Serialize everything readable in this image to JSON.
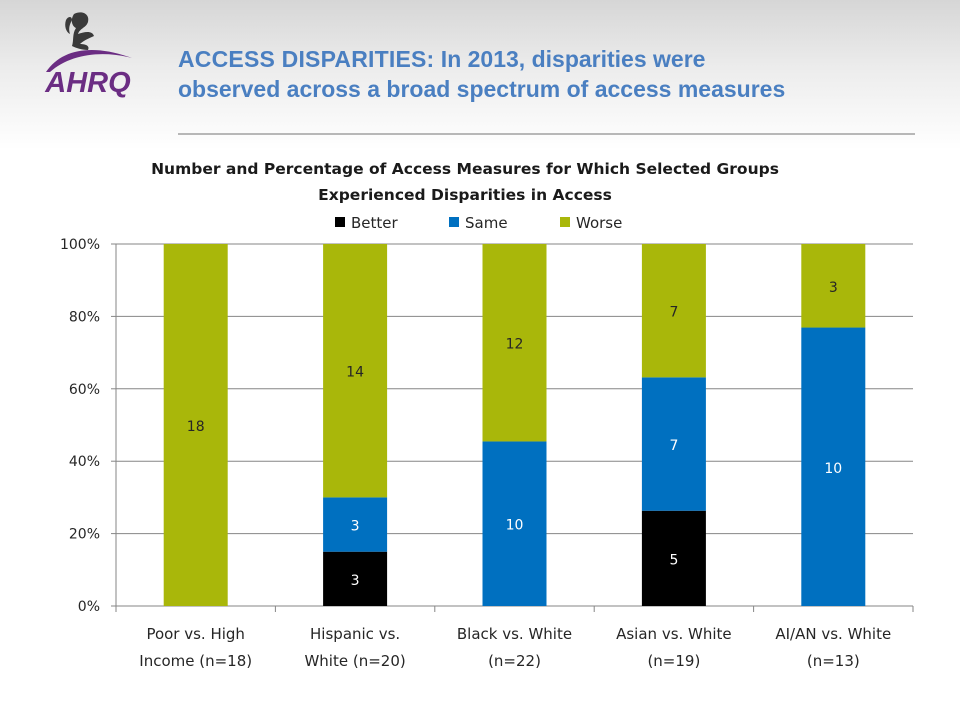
{
  "header": {
    "title_lead": "ACCESS DISPARITIES:",
    "title_rest_line1": " In 2013, disparities were",
    "title_line2": "observed across a broad spectrum of access measures",
    "logo_text": "AHRQ"
  },
  "colors": {
    "title": "#4a7fc1",
    "logo_purple": "#6b2d83",
    "better": "#000000",
    "same": "#0070c0",
    "worse": "#a9b70a"
  },
  "chart_data": {
    "type": "bar",
    "stacked": true,
    "percent_stacked": true,
    "title_line1": "Number and Percentage of Access Measures for Which Selected Groups",
    "title_line2": "Experienced Disparities in Access",
    "legend_position": "top",
    "categories_line1": [
      "Poor vs. High",
      "Hispanic vs.",
      "Black vs. White",
      "Asian vs. White",
      "AI/AN vs. White"
    ],
    "categories_line2": [
      "Income (n=18)",
      "White (n=20)",
      "(n=22)",
      "(n=19)",
      "(n=13)"
    ],
    "series": [
      {
        "name": "Better",
        "values": [
          0,
          3,
          0,
          5,
          0
        ]
      },
      {
        "name": "Same",
        "values": [
          0,
          3,
          10,
          7,
          10
        ]
      },
      {
        "name": "Worse",
        "values": [
          18,
          14,
          12,
          7,
          3
        ]
      }
    ],
    "y_ticks": [
      "0%",
      "20%",
      "40%",
      "60%",
      "80%",
      "100%"
    ],
    "ylim": [
      0,
      100
    ],
    "grid": true
  }
}
